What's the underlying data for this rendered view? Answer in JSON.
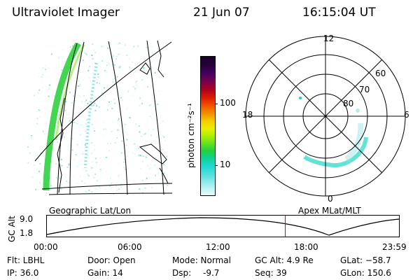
{
  "header": {
    "instrument": "Ultraviolet Imager",
    "date": "21 Jun 07",
    "time": "16:15:04 UT"
  },
  "colorbar": {
    "unit_label": "photon cm⁻²s⁻¹",
    "ticks": [
      "100",
      "10"
    ]
  },
  "polar_plot": {
    "mlt_labels": {
      "top": "12",
      "left": "18",
      "right": "6",
      "bottom": "0"
    },
    "lat_labels": [
      "60",
      "70",
      "80"
    ]
  },
  "panel_labels": {
    "left": "Geographic Lat/Lon",
    "right": "Apex MLat/MLT"
  },
  "altitude_plot": {
    "ylabel": "GC Alt",
    "y_ticks": [
      "9.0",
      "1.8"
    ],
    "x_ticks": [
      "00:00",
      "06:00",
      "12:00",
      "18:00",
      "23:59"
    ],
    "current_time_marker_hours": 16.25,
    "marker_color": "#cc0000"
  },
  "status": {
    "flt": "Flt: LBHL",
    "ip": "IP: 36.0",
    "door": "Door: Open",
    "gain": "Gain: 14",
    "mode": "Mode: Normal",
    "dsp_label": "Dsp:",
    "dsp_value": "-9.7",
    "gcalt": "GC Alt: 4.9 Re",
    "seq": "Seq: 39",
    "glat": "GLat: −58.7",
    "glon": "GLon: 150.6"
  }
}
